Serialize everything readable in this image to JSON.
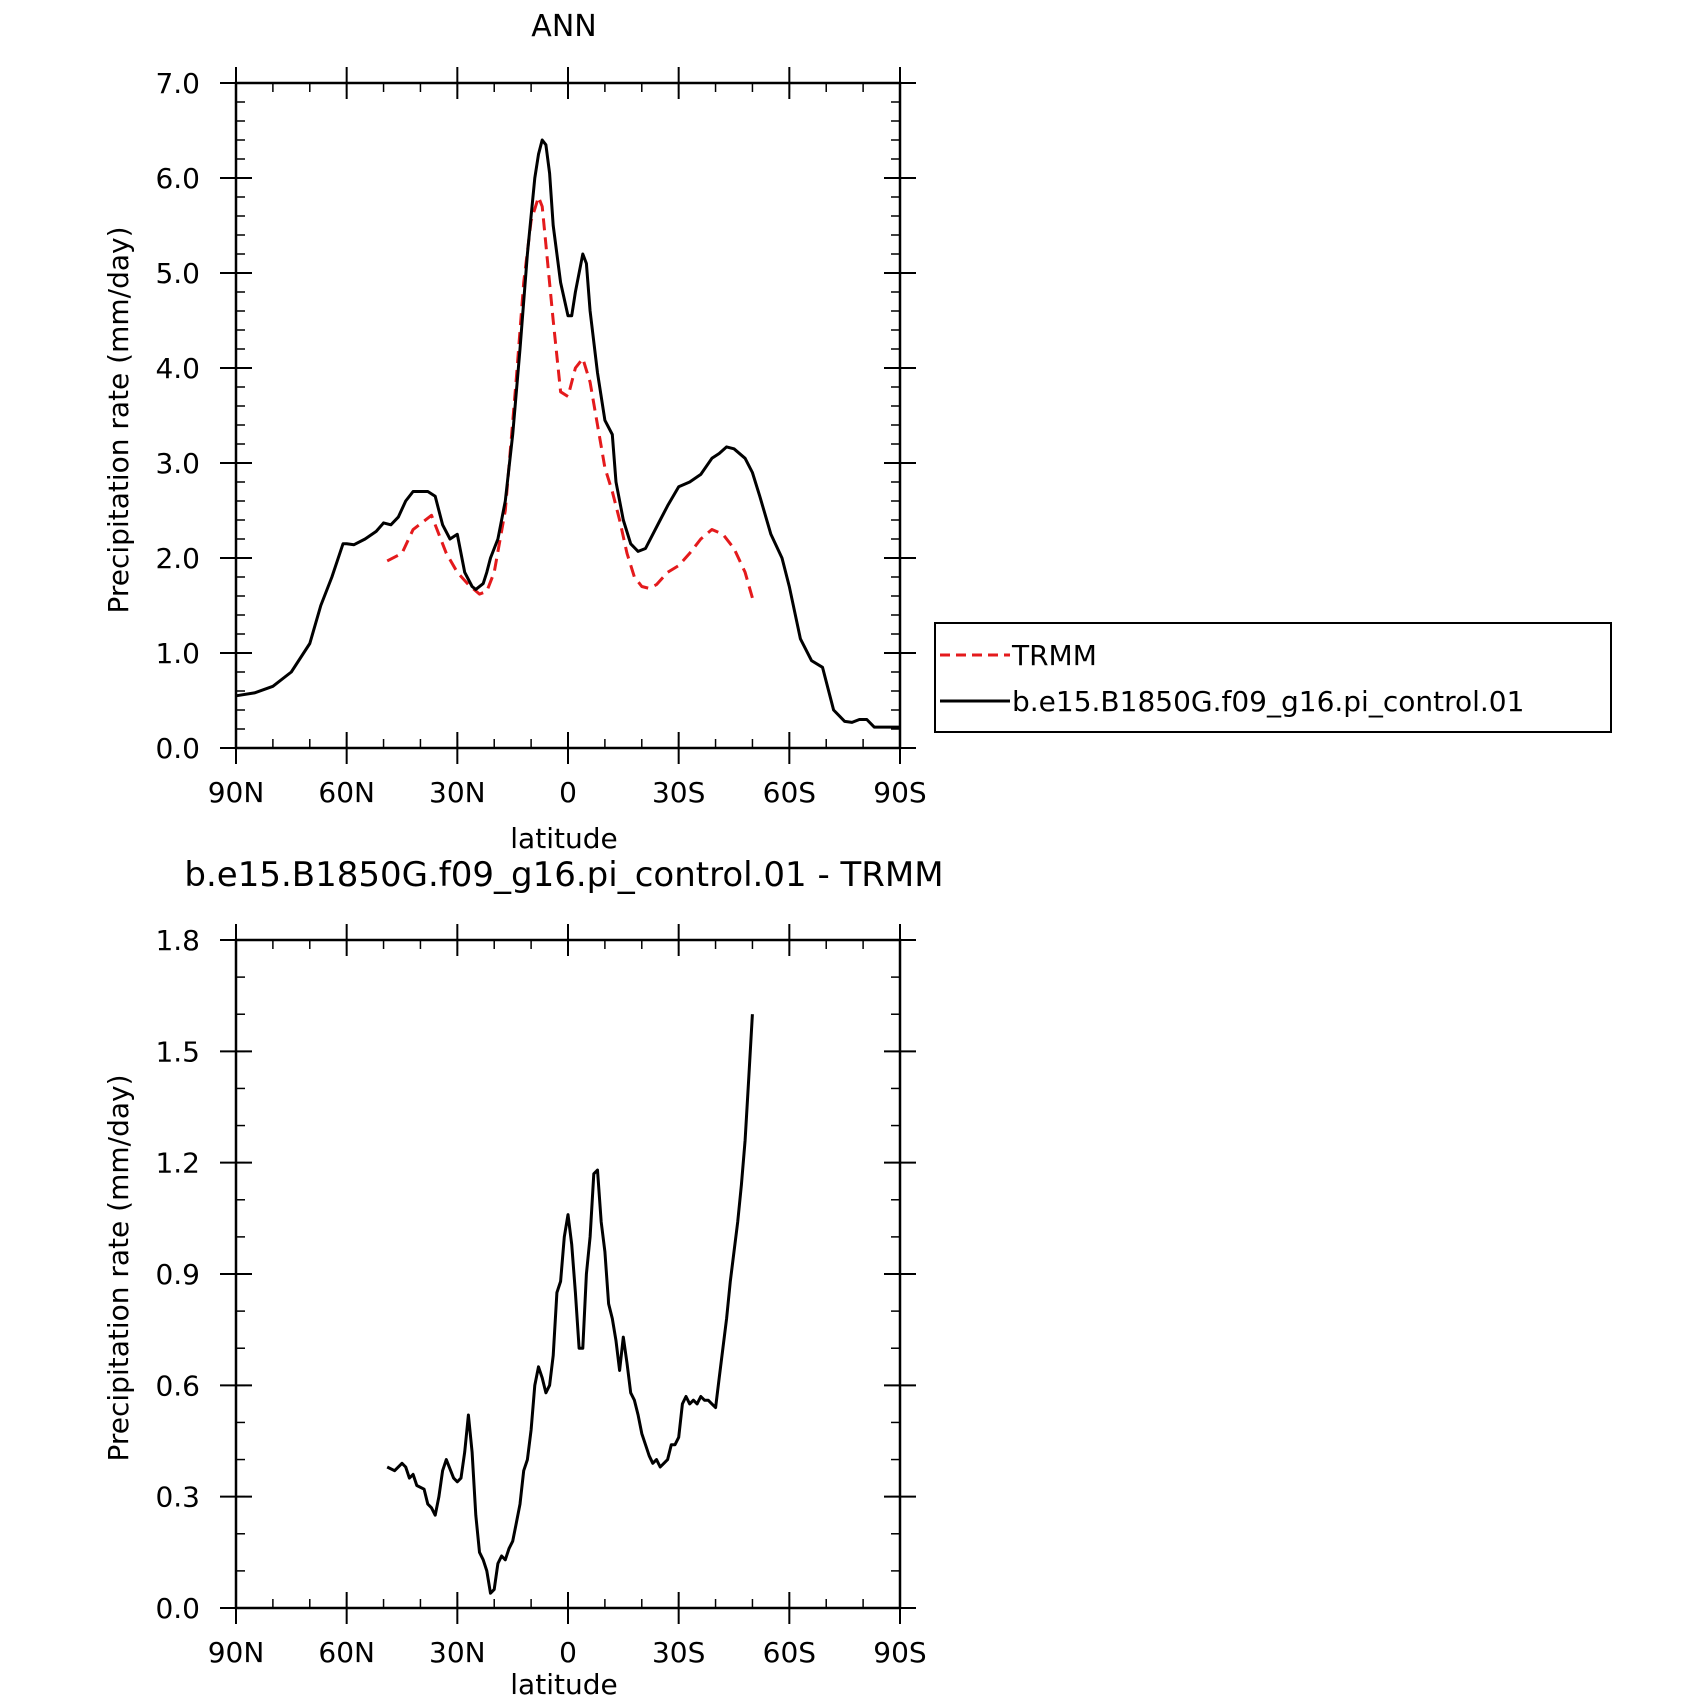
{
  "chart_data": [
    {
      "type": "line",
      "title": "ANN",
      "xlabel": "latitude",
      "ylabel": "Precipitation rate (mm/day)",
      "xlim": [
        90,
        -90
      ],
      "ylim": [
        0.0,
        7.0
      ],
      "xticks": [
        90,
        60,
        30,
        0,
        -30,
        -60,
        -90
      ],
      "xtick_labels": [
        "90N",
        "60N",
        "30N",
        "0",
        "30S",
        "60S",
        "90S"
      ],
      "yticks": [
        0,
        1,
        2,
        3,
        4,
        5,
        6,
        7
      ],
      "ytick_labels": [
        "0.0",
        "1.0",
        "2.0",
        "3.0",
        "4.0",
        "5.0",
        "6.0",
        "7.0"
      ],
      "legend": "right",
      "series": [
        {
          "name": "TRMM",
          "color": "#e41a1c",
          "dash": "dashed",
          "x": [
            49,
            45,
            42,
            37,
            33,
            30,
            27,
            24,
            22,
            20,
            17,
            14,
            12,
            10,
            8,
            7,
            6,
            4,
            2,
            0,
            -2,
            -4,
            -6,
            -8,
            -10,
            -12,
            -14,
            -16,
            -18,
            -20,
            -22,
            -24,
            -27,
            -30,
            -33,
            -36,
            -39,
            -42,
            -45,
            -48,
            -50
          ],
          "y": [
            1.97,
            2.05,
            2.3,
            2.45,
            2.05,
            1.85,
            1.72,
            1.62,
            1.65,
            1.85,
            2.5,
            3.9,
            4.9,
            5.55,
            5.8,
            5.7,
            5.3,
            4.5,
            3.75,
            3.7,
            4.0,
            4.1,
            3.85,
            3.4,
            2.95,
            2.7,
            2.4,
            2.05,
            1.8,
            1.7,
            1.68,
            1.72,
            1.85,
            1.92,
            2.05,
            2.2,
            2.3,
            2.25,
            2.1,
            1.85,
            1.58
          ]
        },
        {
          "name": "b.e15.B1850G.f09_g16.pi_control.01",
          "color": "#000000",
          "dash": "solid",
          "x": [
            90,
            85,
            80,
            75,
            70,
            67,
            64,
            61,
            60,
            58,
            55,
            52,
            50,
            48,
            46,
            44,
            42,
            40,
            38,
            36,
            34,
            32,
            30,
            28,
            26,
            25,
            23,
            22,
            21,
            19,
            17,
            15,
            13,
            11,
            9,
            8,
            7,
            6,
            5,
            4,
            2,
            0,
            -1,
            -2,
            -4,
            -5,
            -6,
            -8,
            -10,
            -12,
            -13,
            -15,
            -17,
            -19,
            -21,
            -23,
            -25,
            -27,
            -30,
            -33,
            -36,
            -39,
            -41,
            -43,
            -45,
            -48,
            -50,
            -52,
            -55,
            -58,
            -60,
            -63,
            -66,
            -69,
            -72,
            -75,
            -77,
            -79,
            -81,
            -83,
            -85,
            -87,
            -89,
            -90
          ],
          "y": [
            0.55,
            0.58,
            0.65,
            0.8,
            1.1,
            1.5,
            1.8,
            2.15,
            2.15,
            2.14,
            2.2,
            2.28,
            2.37,
            2.35,
            2.43,
            2.6,
            2.7,
            2.7,
            2.7,
            2.65,
            2.35,
            2.2,
            2.25,
            1.85,
            1.7,
            1.67,
            1.73,
            1.85,
            2.0,
            2.2,
            2.6,
            3.3,
            4.2,
            5.2,
            6.0,
            6.25,
            6.4,
            6.35,
            6.05,
            5.5,
            4.9,
            4.55,
            4.55,
            4.8,
            5.2,
            5.1,
            4.6,
            3.95,
            3.45,
            3.3,
            2.8,
            2.4,
            2.15,
            2.07,
            2.1,
            2.25,
            2.4,
            2.55,
            2.75,
            2.8,
            2.88,
            3.05,
            3.1,
            3.17,
            3.15,
            3.05,
            2.9,
            2.65,
            2.25,
            2.0,
            1.7,
            1.15,
            0.92,
            0.85,
            0.4,
            0.28,
            0.27,
            0.3,
            0.3,
            0.22,
            0.22,
            0.22,
            0.22,
            0.22
          ]
        }
      ]
    },
    {
      "type": "line",
      "title": "b.e15.B1850G.f09_g16.pi_control.01 - TRMM",
      "xlabel": "latitude",
      "ylabel": "Precipitation rate (mm/day)",
      "xlim": [
        90,
        -90
      ],
      "ylim": [
        0.0,
        1.8
      ],
      "xticks": [
        90,
        60,
        30,
        0,
        -30,
        -60,
        -90
      ],
      "xtick_labels": [
        "90N",
        "60N",
        "30N",
        "0",
        "30S",
        "60S",
        "90S"
      ],
      "yticks": [
        0.0,
        0.3,
        0.6,
        0.9,
        1.2,
        1.5,
        1.8
      ],
      "ytick_labels": [
        "0.0",
        "0.3",
        "0.6",
        "0.9",
        "1.2",
        "1.5",
        "1.8"
      ],
      "series": [
        {
          "name": "",
          "color": "#000000",
          "dash": "solid",
          "x": [
            49,
            47,
            45,
            44,
            43,
            42,
            41,
            39,
            38,
            37,
            36,
            35,
            34,
            33,
            31,
            30,
            29,
            28,
            27,
            26,
            25,
            24,
            23,
            22,
            21,
            20,
            19,
            18,
            17,
            16,
            15,
            14,
            13,
            12,
            11,
            10,
            9,
            8,
            7,
            6,
            5,
            4,
            3,
            2,
            1,
            0,
            -1,
            -2,
            -3,
            -4,
            -5,
            -6,
            -7,
            -8,
            -9,
            -10,
            -11,
            -12,
            -13,
            -14,
            -15,
            -16,
            -17,
            -18,
            -19,
            -20,
            -21,
            -22,
            -23,
            -24,
            -25,
            -26,
            -27,
            -28,
            -29,
            -30,
            -31,
            -32,
            -33,
            -34,
            -35,
            -36,
            -37,
            -38,
            -39,
            -40,
            -41,
            -42,
            -43,
            -44,
            -45,
            -46,
            -47,
            -48,
            -49,
            -50
          ],
          "y": [
            0.38,
            0.37,
            0.39,
            0.38,
            0.35,
            0.36,
            0.33,
            0.32,
            0.28,
            0.27,
            0.25,
            0.3,
            0.37,
            0.4,
            0.35,
            0.34,
            0.35,
            0.42,
            0.52,
            0.42,
            0.25,
            0.15,
            0.13,
            0.1,
            0.04,
            0.05,
            0.12,
            0.14,
            0.13,
            0.16,
            0.18,
            0.23,
            0.28,
            0.37,
            0.4,
            0.48,
            0.6,
            0.65,
            0.62,
            0.58,
            0.6,
            0.68,
            0.85,
            0.88,
            1.0,
            1.06,
            0.98,
            0.85,
            0.7,
            0.7,
            0.9,
            1.0,
            1.17,
            1.18,
            1.04,
            0.96,
            0.82,
            0.78,
            0.72,
            0.64,
            0.73,
            0.66,
            0.58,
            0.56,
            0.52,
            0.47,
            0.44,
            0.41,
            0.39,
            0.4,
            0.38,
            0.39,
            0.4,
            0.44,
            0.44,
            0.46,
            0.55,
            0.57,
            0.55,
            0.56,
            0.55,
            0.57,
            0.56,
            0.56,
            0.55,
            0.54,
            0.62,
            0.7,
            0.78,
            0.88,
            0.96,
            1.04,
            1.14,
            1.26,
            1.43,
            1.6
          ]
        }
      ]
    }
  ]
}
